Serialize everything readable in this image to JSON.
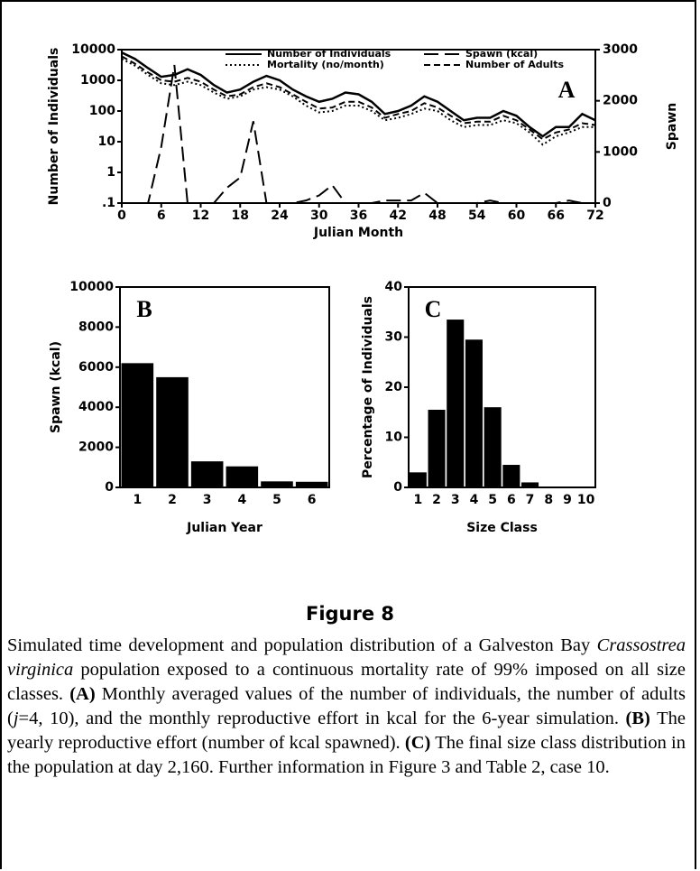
{
  "chart_data": [
    {
      "type": "line",
      "annotation": "A",
      "xlabel": "Julian Month",
      "ylabel": "Number of Individuals",
      "y2label": "Spawn",
      "x": [
        0,
        2,
        4,
        6,
        8,
        10,
        12,
        14,
        16,
        18,
        20,
        22,
        24,
        26,
        28,
        30,
        32,
        34,
        36,
        38,
        40,
        42,
        44,
        46,
        48,
        50,
        52,
        54,
        56,
        58,
        60,
        62,
        64,
        66,
        68,
        70,
        72
      ],
      "series": [
        {
          "name": "Number of Individuals",
          "color": "#000000",
          "linestyle": "solid",
          "values": [
            8000,
            5000,
            2500,
            1300,
            1500,
            2300,
            1500,
            700,
            400,
            500,
            900,
            1400,
            1000,
            500,
            300,
            200,
            250,
            400,
            350,
            200,
            80,
            100,
            150,
            300,
            200,
            100,
            50,
            60,
            60,
            100,
            70,
            30,
            15,
            30,
            30,
            80,
            50
          ]
        },
        {
          "name": "Spawn (kcal)",
          "color": "#000000",
          "linestyle": "long-dashed",
          "axis": "y2",
          "values": [
            0,
            0,
            0,
            1100,
            2700,
            0,
            0,
            0,
            300,
            500,
            1600,
            0,
            0,
            0,
            50,
            150,
            350,
            0,
            0,
            0,
            50,
            50,
            50,
            200,
            0,
            0,
            0,
            0,
            50,
            0,
            0,
            0,
            0,
            0,
            50,
            0,
            0
          ]
        },
        {
          "name": "Mortality (no/month)",
          "color": "#000000",
          "linestyle": "dotted",
          "values": [
            5000,
            3000,
            1500,
            800,
            700,
            900,
            700,
            400,
            250,
            300,
            500,
            600,
            500,
            300,
            150,
            90,
            100,
            150,
            150,
            100,
            50,
            60,
            80,
            120,
            100,
            50,
            30,
            35,
            35,
            50,
            40,
            20,
            8,
            15,
            20,
            30,
            30
          ]
        },
        {
          "name": "Number of Adults",
          "color": "#000000",
          "linestyle": "dashed",
          "values": [
            6000,
            3500,
            1800,
            1000,
            900,
            1200,
            900,
            500,
            300,
            350,
            600,
            800,
            600,
            350,
            200,
            120,
            130,
            200,
            200,
            130,
            60,
            80,
            100,
            180,
            130,
            70,
            40,
            45,
            45,
            70,
            50,
            25,
            12,
            20,
            25,
            40,
            35
          ]
        }
      ],
      "xlim": [
        0,
        72
      ],
      "xticks": [
        0,
        6,
        12,
        18,
        24,
        30,
        36,
        42,
        48,
        54,
        60,
        66,
        72
      ],
      "ylim": [
        0.1,
        10000
      ],
      "yscale": "log",
      "yticks": [
        {
          "value": 0.1,
          "label": ".1"
        },
        1,
        10,
        100,
        1000,
        10000
      ],
      "y2lim": [
        0,
        3000
      ],
      "y2ticks": [
        0,
        1000,
        2000,
        3000
      ]
    },
    {
      "type": "bar",
      "annotation": "B",
      "xlabel": "Julian Year",
      "ylabel": "Spawn (kcal)",
      "categories": [
        "1",
        "2",
        "3",
        "4",
        "5",
        "6"
      ],
      "values": [
        6200,
        5500,
        1300,
        1050,
        300,
        280
      ],
      "color": "#000000",
      "ylim": [
        0,
        10000
      ],
      "yticks": [
        0,
        2000,
        4000,
        6000,
        8000,
        10000
      ]
    },
    {
      "type": "bar",
      "annotation": "C",
      "xlabel": "Size Class",
      "ylabel": "Percentage of Individuals",
      "categories": [
        "1",
        "2",
        "3",
        "4",
        "5",
        "6",
        "7",
        "8",
        "9",
        "10"
      ],
      "values": [
        3,
        15.5,
        33.5,
        29.5,
        16,
        4.5,
        1,
        0,
        0,
        0
      ],
      "color": "#000000",
      "ylim": [
        0,
        40
      ],
      "yticks": [
        0,
        10,
        20,
        30,
        40
      ]
    }
  ],
  "caption": {
    "title": "Figure 8",
    "parts": [
      "Simulated time development and population distribution of a Galveston Bay ",
      "Crassostrea virginica",
      " population exposed to a continuous mortality rate of 99% imposed on all size classes. ",
      "(A)",
      " Monthly averaged values of the number of individuals, the number of adults (",
      "j",
      "=4, 10), and the monthly reproductive effort in kcal for the 6-year simulation. ",
      "(B)",
      " The yearly reproductive effort (number of kcal spawned). ",
      "(C)",
      " The final size class distribution in the population at day 2,160. Further information in Figure 3 and Table 2, case 10."
    ]
  }
}
